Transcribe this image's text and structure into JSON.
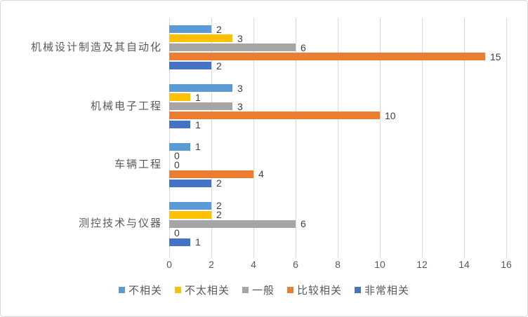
{
  "chart_data": {
    "type": "bar",
    "orientation": "horizontal",
    "title": "",
    "xlabel": "",
    "ylabel": "",
    "xlim": [
      0,
      16
    ],
    "x_ticks": [
      0,
      2,
      4,
      6,
      8,
      10,
      12,
      14,
      16
    ],
    "grid": true,
    "legend_position": "bottom",
    "categories": [
      "机械设计制造及其自动化",
      "机械电子工程",
      "车辆工程",
      "测控技术与仪器"
    ],
    "series": [
      {
        "name": "不相关",
        "color": "#5B9BD5",
        "values": [
          2,
          3,
          1,
          2
        ]
      },
      {
        "name": "不太相关",
        "color": "#FFC000",
        "values": [
          3,
          1,
          0,
          2
        ]
      },
      {
        "name": "一般",
        "color": "#A5A5A5",
        "values": [
          6,
          3,
          0,
          6
        ]
      },
      {
        "name": "比较相关",
        "color": "#ED7D31",
        "values": [
          15,
          10,
          4,
          0
        ]
      },
      {
        "name": "非常相关",
        "color": "#4472C4",
        "values": [
          2,
          1,
          2,
          1
        ]
      }
    ],
    "data_labels_shown": true,
    "colors": {
      "gridline": "#D9D9D9",
      "axis_text": "#595959",
      "data_label_text": "#404040",
      "background": "#FFFFFF",
      "frame_border": "#D7D7D7"
    }
  }
}
